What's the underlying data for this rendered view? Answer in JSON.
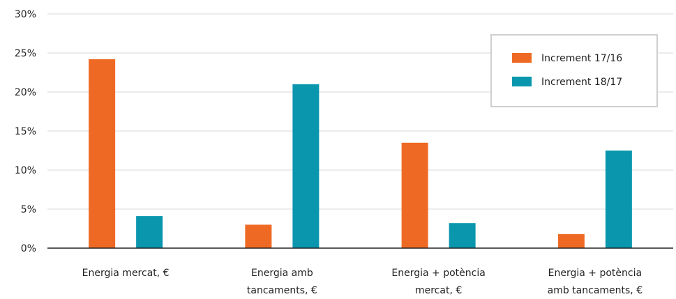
{
  "chart_data": {
    "type": "bar",
    "categories": [
      [
        "Energia mercat, €"
      ],
      [
        "Energia amb",
        "tancaments, €"
      ],
      [
        "Energia + potència",
        "mercat, €"
      ],
      [
        "Energia + potència",
        "amb tancaments, €"
      ]
    ],
    "series": [
      {
        "name": "Increment 17/16",
        "color": "#EE6A24",
        "values": [
          24.2,
          3.0,
          13.5,
          1.8
        ]
      },
      {
        "name": "Increment 18/17",
        "color": "#0A97AE",
        "values": [
          4.1,
          21.0,
          3.2,
          12.5
        ]
      }
    ],
    "yticks": [
      "0%",
      "5%",
      "10%",
      "15%",
      "20%",
      "25%",
      "30%"
    ],
    "ylim": [
      0,
      30
    ],
    "ystep": 5,
    "grid": true,
    "legend_position": "top-right"
  }
}
